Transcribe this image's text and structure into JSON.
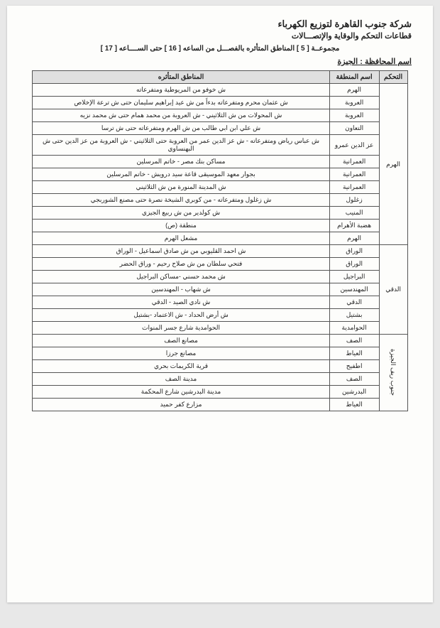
{
  "header": {
    "company": "شركة جنوب القاهرة لتوزيع الكهرباء",
    "sector": "قطاعات التحكم والوقاية والإتصـــالات",
    "group_line": "مجموعــة [ 5 ] المناطق المتأثره بالفصـــل من الساعه [ 16 ] حتى الســــاعه [ 17 ]",
    "gov_label": "اسم المحافظة :",
    "gov_name": "الجيزة"
  },
  "columns": {
    "control": "التحكم",
    "zone": "اسم المنطقة",
    "areas": "المناطق المتأثره"
  },
  "groups": [
    {
      "control": "الهرم",
      "rows": [
        {
          "zone": "الهرم",
          "areas": "ش خوفو من المريوطية ومتفرعاته"
        },
        {
          "zone": "العروبة",
          "areas": "ش عثمان محرم ومتفرعاته بدءاً من ش عيد إبراهيم سليمان حتى ش ترعة الإخلاص"
        },
        {
          "zone": "العروبة",
          "areas": "ش المحولات من ش الثلاثيني - ش العروبة من محمد همام حتى ش محمد نزيه"
        },
        {
          "zone": "التعاون",
          "areas": "ش علي ابن ابي طالب من ش الهرم ومتفرعاته حتى ش ترسا"
        },
        {
          "zone": "عز الدين عمرو",
          "areas": "ش عباس رياض ومتفرعاته - ش عز الدين عمر من العروبة حتى الثلاثيني - ش العروبة من عز الدين حتى ش البهنساوي"
        },
        {
          "zone": "العمرانية",
          "areas": "مساكن بنك مصر - خاتم المرسلين"
        },
        {
          "zone": "العمرانية",
          "areas": "بجوار معهد الموسيقى قاعة سيد درويش - خاتم المرسلين"
        },
        {
          "zone": "العمرانية",
          "areas": "ش المدينة المنورة من ش الثلاثيني"
        },
        {
          "zone": "زغلول",
          "areas": "ش زغلول ومتفرعاته - من كوبري الشيخة نصرة حتى مصنع الشوربجي"
        },
        {
          "zone": "المنيب",
          "areas": "ش كولدير من ش ربيع الجيزي"
        },
        {
          "zone": "هضبة الأهرام",
          "areas": "منطقة (ص)"
        },
        {
          "zone": "الهرم",
          "areas": "مشعل الهرم"
        }
      ]
    },
    {
      "control": "الدقي",
      "rows": [
        {
          "zone": "الوراق",
          "areas": "ش احمد القليوبي من ش صادق اسماعيل - الوراق"
        },
        {
          "zone": "الوراق",
          "areas": "فتحي سلطان من ش صلاح رحيم - وراق الحضر"
        },
        {
          "zone": "البراجيل",
          "areas": "ش محمد حسني -مساكن البراجيل"
        },
        {
          "zone": "المهندسين",
          "areas": "ش شهاب - المهندسين"
        },
        {
          "zone": "الدقي",
          "areas": "ش نادي الصيد - الدقي"
        },
        {
          "zone": "بشتيل",
          "areas": "ش أرض الحداد - ش الاعتماد -بشتيل"
        },
        {
          "zone": "الحوامدية",
          "areas": "الحوامدية شارع جسر المنوات"
        }
      ]
    },
    {
      "control": "جنوب ريف الجيزة",
      "rows": [
        {
          "zone": "الصف",
          "areas": "مصانع الصف"
        },
        {
          "zone": "العياط",
          "areas": "مصانع جرزا"
        },
        {
          "zone": "اطفيح",
          "areas": "قرية الكريمات بحري"
        },
        {
          "zone": "الصف",
          "areas": "مدينة الصف"
        },
        {
          "zone": "البدرشين",
          "areas": "مدينة البدرشين شارع المحكمة"
        },
        {
          "zone": "العياط",
          "areas": "مزارع كفر حميد"
        }
      ]
    }
  ],
  "styling": {
    "page_bg": "#fdfdfb",
    "outer_bg": "#e8e8e8",
    "header_bg": "#e0e0e0",
    "border_color": "#555555",
    "text_color": "#222222",
    "base_font_size": 9
  }
}
